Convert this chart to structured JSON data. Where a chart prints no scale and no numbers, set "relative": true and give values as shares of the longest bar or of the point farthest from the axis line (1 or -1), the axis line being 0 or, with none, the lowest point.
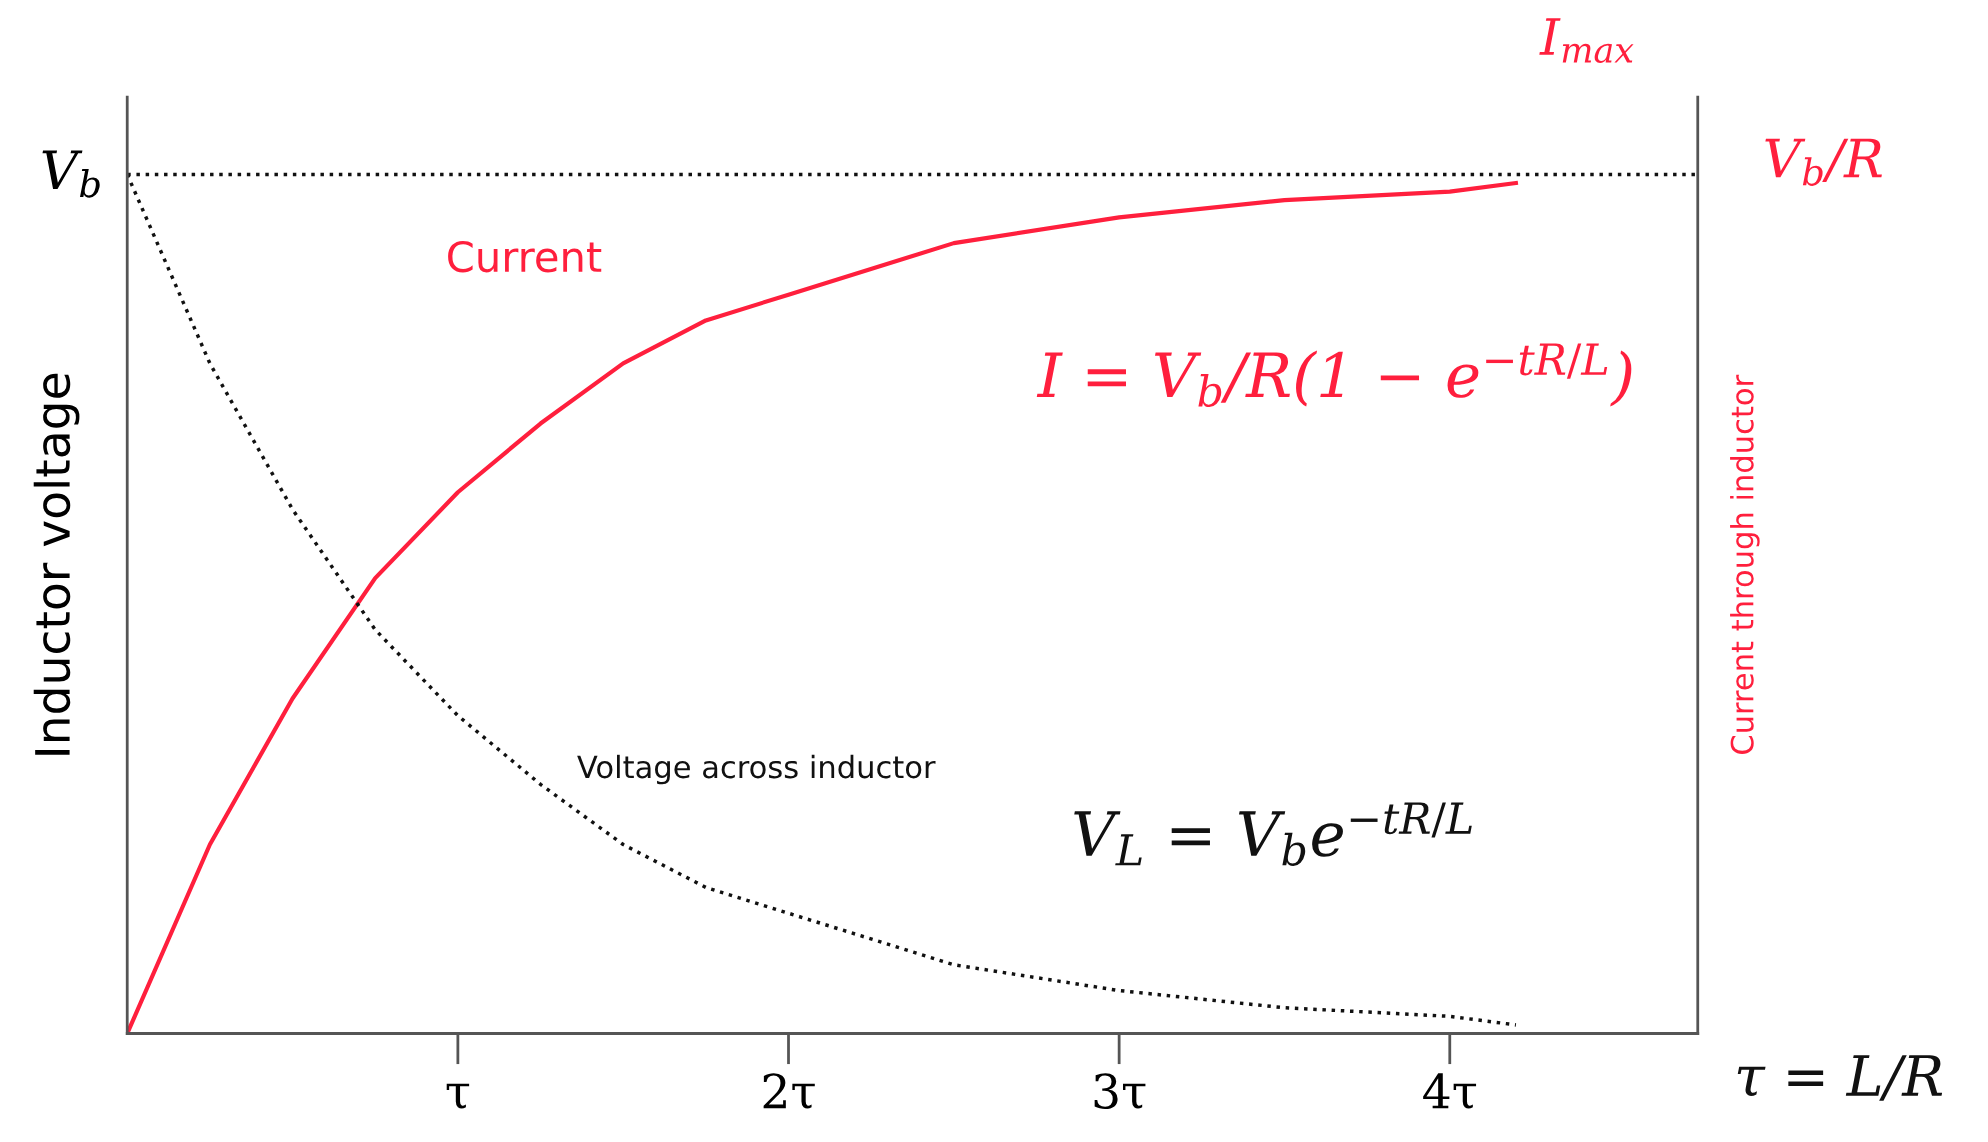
{
  "chart_data": {
    "type": "line",
    "relative": true,
    "xlabel": null,
    "ylabel": "Inductor voltage",
    "y2label": "Current through inductor",
    "x": [
      0,
      0.25,
      0.5,
      0.75,
      1,
      1.25,
      1.5,
      1.75,
      2,
      2.5,
      3,
      3.5,
      4,
      4.2
    ],
    "xlim": [
      0,
      4.75
    ],
    "xticks": [
      {
        "value": 1,
        "label": "τ"
      },
      {
        "value": 2,
        "label": "2τ"
      },
      {
        "value": 3,
        "label": "3τ"
      },
      {
        "value": 4,
        "label": "4τ"
      }
    ],
    "series": [
      {
        "name": "Current",
        "color": "#ff1f3d",
        "line_style": "solid",
        "values": [
          0,
          0.22,
          0.39,
          0.53,
          0.63,
          0.71,
          0.78,
          0.83,
          0.86,
          0.92,
          0.95,
          0.97,
          0.98,
          0.99
        ]
      },
      {
        "name": "Voltage across inductor",
        "color": "#111111",
        "line_style": "dotted",
        "values": [
          1,
          0.78,
          0.61,
          0.47,
          0.37,
          0.29,
          0.22,
          0.17,
          0.14,
          0.08,
          0.05,
          0.03,
          0.02,
          0.01
        ]
      }
    ],
    "ref_lines": [
      {
        "axis": "y",
        "value": 1,
        "label": "V$_{b}$",
        "color": "#111111",
        "line_style": "dotted"
      }
    ],
    "annotations": [
      "I$_{max}$",
      "V$_{b}$/R",
      "I = V$_{b}$/R(1 − e$^{−tR/L}$)",
      "V$_{L}$ = V$_{b}$e$^{−tR/L}$",
      "τ = L/R"
    ],
    "grid": false,
    "legend": false,
    "marker": "none",
    "tick_labels": "x"
  }
}
